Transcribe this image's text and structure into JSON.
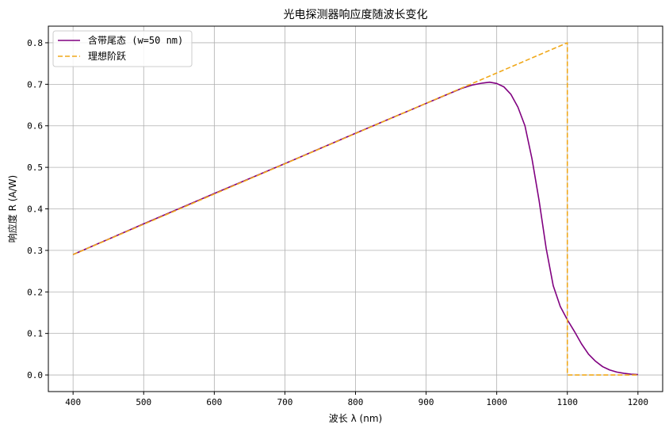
{
  "chart_data": {
    "type": "line",
    "title": "光电探测器响应度随波长变化",
    "xlabel": "波长 λ (nm)",
    "ylabel": "响应度 R (A/W)",
    "xlim": [
      365,
      1235
    ],
    "ylim": [
      -0.04,
      0.84
    ],
    "xticks": [
      400,
      500,
      600,
      700,
      800,
      900,
      1000,
      1100,
      1200
    ],
    "yticks": [
      0.0,
      0.1,
      0.2,
      0.3,
      0.4,
      0.5,
      0.6,
      0.7,
      0.8
    ],
    "xtick_labels": [
      "400",
      "500",
      "600",
      "700",
      "800",
      "900",
      "1000",
      "1100",
      "1200"
    ],
    "ytick_labels": [
      "0.0",
      "0.1",
      "0.2",
      "0.3",
      "0.4",
      "0.5",
      "0.6",
      "0.7",
      "0.8"
    ],
    "grid": true,
    "legend_position": "top-left",
    "series": [
      {
        "name": "含带尾态 (w=50 nm)",
        "color": "#800080",
        "style": "solid",
        "x": [
          400,
          500,
          600,
          700,
          800,
          900,
          925,
          950,
          965,
          980,
          990,
          1000,
          1010,
          1020,
          1030,
          1040,
          1050,
          1060,
          1070,
          1080,
          1090,
          1100,
          1110,
          1120,
          1130,
          1140,
          1150,
          1160,
          1170,
          1180,
          1190,
          1200
        ],
        "y": [
          0.29,
          0.364,
          0.437,
          0.509,
          0.582,
          0.654,
          0.672,
          0.69,
          0.698,
          0.703,
          0.705,
          0.702,
          0.694,
          0.676,
          0.645,
          0.6,
          0.52,
          0.42,
          0.305,
          0.215,
          0.165,
          0.133,
          0.105,
          0.075,
          0.05,
          0.033,
          0.02,
          0.012,
          0.007,
          0.004,
          0.002,
          0.001
        ]
      },
      {
        "name": "理想阶跃",
        "color": "#f0a81a",
        "style": "dashed",
        "x": [
          400,
          1100,
          1100,
          1200
        ],
        "y": [
          0.29,
          0.8,
          0.0,
          0.0
        ]
      }
    ]
  }
}
